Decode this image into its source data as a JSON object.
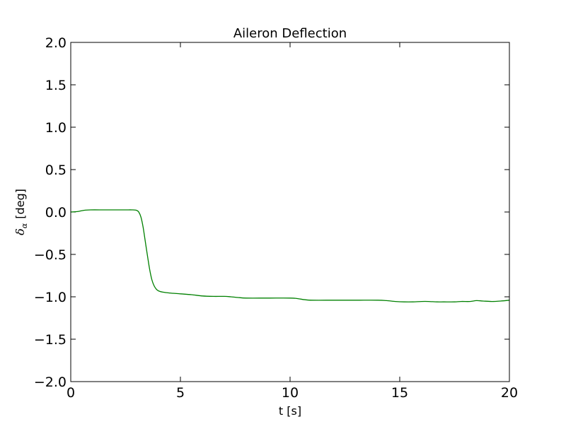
{
  "chart_data": {
    "type": "line",
    "title": "Aileron Deflection",
    "xlabel": "t [s]",
    "ylabel_symbol": "δ",
    "ylabel_subscript": "α",
    "ylabel_unit": "[deg]",
    "xlim": [
      0,
      20
    ],
    "ylim": [
      -2.0,
      2.0
    ],
    "xticks": [
      "0",
      "5",
      "10",
      "15",
      "20"
    ],
    "yticks": [
      "2.0",
      "1.5",
      "1.0",
      "0.5",
      "0.0",
      "−0.5",
      "−1.0",
      "−1.5",
      "−2.0"
    ],
    "grid": false,
    "series": [
      {
        "color": "#008000",
        "x": [
          0,
          0.3,
          0.6,
          0.9,
          1.5,
          2.0,
          2.5,
          2.8,
          3.0,
          3.1,
          3.2,
          3.3,
          3.4,
          3.5,
          3.6,
          3.7,
          3.8,
          3.9,
          4.0,
          4.2,
          4.5,
          5.0,
          5.5,
          6.0,
          6.5,
          7.0,
          7.3,
          7.7,
          8.0,
          9.0,
          10.0,
          10.3,
          10.7,
          11.0,
          12.0,
          13.0,
          14.0,
          14.4,
          14.8,
          15.2,
          15.6,
          16.0,
          16.3,
          16.7,
          17.0,
          17.5,
          17.8,
          18.2,
          18.5,
          18.8,
          19.2,
          19.6,
          20.0
        ],
        "y": [
          0.0,
          0.005,
          0.02,
          0.025,
          0.025,
          0.025,
          0.025,
          0.025,
          0.02,
          0.0,
          -0.06,
          -0.18,
          -0.35,
          -0.52,
          -0.68,
          -0.8,
          -0.87,
          -0.91,
          -0.93,
          -0.945,
          -0.955,
          -0.965,
          -0.975,
          -0.99,
          -0.995,
          -0.995,
          -1.0,
          -1.01,
          -1.015,
          -1.015,
          -1.015,
          -1.02,
          -1.035,
          -1.04,
          -1.04,
          -1.04,
          -1.04,
          -1.045,
          -1.055,
          -1.06,
          -1.06,
          -1.055,
          -1.055,
          -1.06,
          -1.06,
          -1.06,
          -1.055,
          -1.055,
          -1.045,
          -1.05,
          -1.055,
          -1.05,
          -1.04
        ]
      }
    ]
  }
}
